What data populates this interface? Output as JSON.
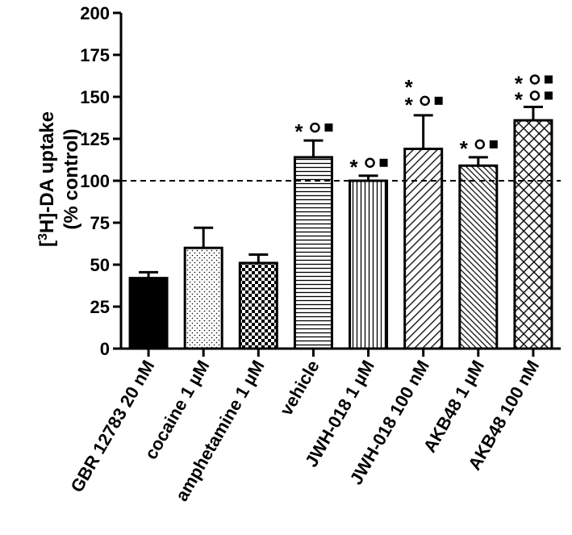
{
  "chart_data": {
    "type": "bar",
    "title": "",
    "ylabel_line1_prefix": "[",
    "ylabel_line1_sup": "3",
    "ylabel_line1_rest": "H]-DA uptake",
    "ylabel_line2": "(% control)",
    "xlabel": "",
    "ylim": [
      0,
      200
    ],
    "yticks": [
      0,
      25,
      50,
      75,
      100,
      125,
      150,
      175,
      200
    ],
    "reference_line": 100,
    "categories": [
      "GBR 12783 20 nM",
      "cocaine 1 µM",
      "amphetamine 1 µM",
      "vehicle",
      "JWH-018 1 µM",
      "JWH-018 100 nM",
      "AKB48 1 µM",
      "AKB48 100 nM"
    ],
    "values": [
      42,
      60,
      51,
      114,
      100,
      119,
      109,
      136
    ],
    "errors": [
      3.5,
      12,
      5,
      10,
      3,
      20,
      5,
      8
    ],
    "patterns": [
      "solid",
      "fine-dots",
      "checker",
      "horizontal",
      "vertical",
      "diagonal-right",
      "diagonal-right-dense",
      "crosshatch"
    ],
    "significance": [
      "",
      "",
      "",
      "* ○ ■",
      "* ○ ■",
      "* ○ ■ stacked-star",
      "* ○ ■",
      "* ○ ■ stacked-all"
    ]
  }
}
